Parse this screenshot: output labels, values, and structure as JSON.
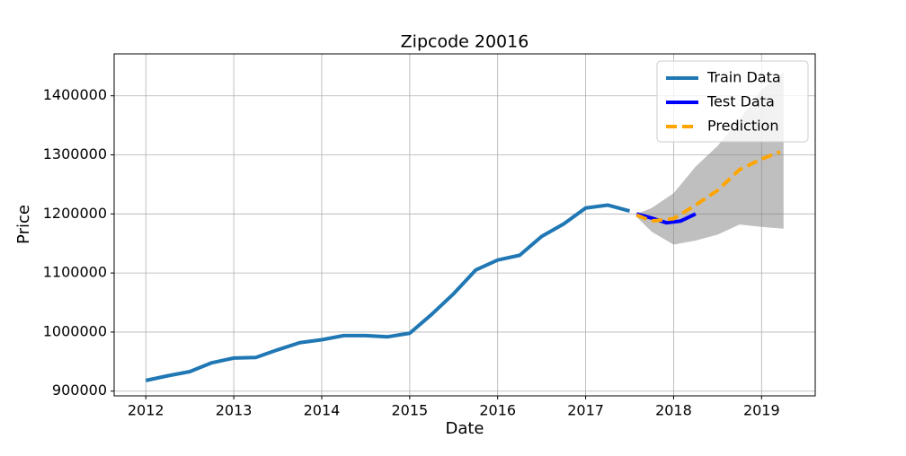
{
  "chart_data": {
    "type": "line",
    "title": "Zipcode 20016",
    "x_label": "Date",
    "y_label": "Price",
    "xlim": [
      2011.64,
      2019.61
    ],
    "xticks": [
      2012,
      2013,
      2014,
      2015,
      2016,
      2017,
      2018,
      2019
    ],
    "ylim": [
      892000,
      1471000
    ],
    "yticks": [
      900000,
      1000000,
      1100000,
      1200000,
      1300000,
      1400000
    ],
    "grid": true,
    "legend": "upper right",
    "series": [
      {
        "name": "Train Data",
        "color": "#1f77b4",
        "dashed": false,
        "x": [
          2012.0,
          2012.25,
          2012.5,
          2012.75,
          2013.0,
          2013.25,
          2013.5,
          2013.75,
          2014.0,
          2014.25,
          2014.5,
          2014.75,
          2015.0,
          2015.25,
          2015.5,
          2015.75,
          2016.0,
          2016.25,
          2016.5,
          2016.75,
          2017.0,
          2017.25,
          2017.5
        ],
        "values": [
          918000,
          926000,
          933000,
          948000,
          956000,
          957000,
          970000,
          982000,
          987000,
          994000,
          994000,
          992000,
          998000,
          1030000,
          1065000,
          1105000,
          1122000,
          1130000,
          1162000,
          1183000,
          1210000,
          1215000,
          1205000
        ]
      },
      {
        "name": "Test Data",
        "color": "#0000ff",
        "dashed": false,
        "x": [
          2017.58,
          2017.75,
          2017.92,
          2018.08,
          2018.25
        ],
        "values": [
          1200000,
          1193000,
          1185000,
          1188000,
          1200000
        ]
      },
      {
        "name": "Prediction",
        "color": "#ffa500",
        "dashed": true,
        "x": [
          2017.58,
          2017.75,
          2018.0,
          2018.25,
          2018.5,
          2018.75,
          2019.0,
          2019.21
        ],
        "values": [
          1198000,
          1188000,
          1192000,
          1215000,
          1240000,
          1275000,
          1293000,
          1305000
        ]
      }
    ],
    "band": {
      "color": "#808080",
      "x": [
        2017.58,
        2017.75,
        2018.0,
        2018.25,
        2018.5,
        2018.75,
        2019.0,
        2019.25
      ],
      "lower": [
        1195000,
        1170000,
        1148000,
        1155000,
        1165000,
        1182000,
        1178000,
        1175000
      ],
      "upper": [
        1200000,
        1210000,
        1235000,
        1280000,
        1315000,
        1360000,
        1410000,
        1440000
      ]
    }
  }
}
